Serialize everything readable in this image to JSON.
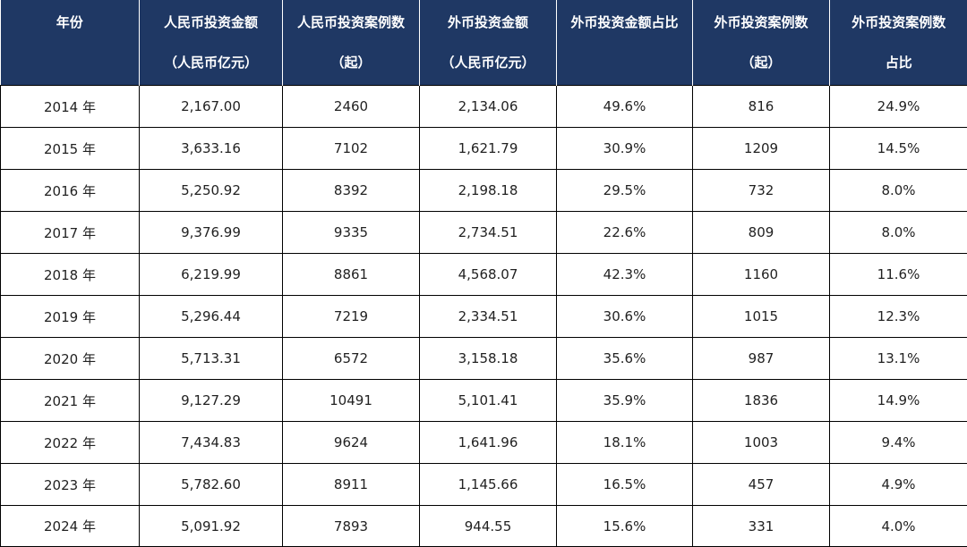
{
  "table": {
    "headers": [
      {
        "line1": "年份",
        "line2": ""
      },
      {
        "line1": "人民币投资金额",
        "line2": "（人民币亿元）"
      },
      {
        "line1": "人民币投资案例数",
        "line2": "（起）"
      },
      {
        "line1": "外币投资金额",
        "line2": "（人民币亿元）"
      },
      {
        "line1": "外币投资金额占比",
        "line2": ""
      },
      {
        "line1": "外币投资案例数",
        "line2": "（起）"
      },
      {
        "line1": "外币投资案例数",
        "line2": "占比"
      }
    ],
    "rows": [
      [
        "2014 年",
        "2,167.00",
        "2460",
        "2,134.06",
        "49.6%",
        "816",
        "24.9%"
      ],
      [
        "2015 年",
        "3,633.16",
        "7102",
        "1,621.79",
        "30.9%",
        "1209",
        "14.5%"
      ],
      [
        "2016 年",
        "5,250.92",
        "8392",
        "2,198.18",
        "29.5%",
        "732",
        "8.0%"
      ],
      [
        "2017 年",
        "9,376.99",
        "9335",
        "2,734.51",
        "22.6%",
        "809",
        "8.0%"
      ],
      [
        "2018 年",
        "6,219.99",
        "8861",
        "4,568.07",
        "42.3%",
        "1160",
        "11.6%"
      ],
      [
        "2019 年",
        "5,296.44",
        "7219",
        "2,334.51",
        "30.6%",
        "1015",
        "12.3%"
      ],
      [
        "2020 年",
        "5,713.31",
        "6572",
        "3,158.18",
        "35.6%",
        "987",
        "13.1%"
      ],
      [
        "2021 年",
        "9,127.29",
        "10491",
        "5,101.41",
        "35.9%",
        "1836",
        "14.9%"
      ],
      [
        "2022 年",
        "7,434.83",
        "9624",
        "1,641.96",
        "18.1%",
        "1003",
        "9.4%"
      ],
      [
        "2023 年",
        "5,782.60",
        "8911",
        "1,145.66",
        "16.5%",
        "457",
        "4.9%"
      ],
      [
        "2024 年",
        "5,091.92",
        "7893",
        "944.55",
        "15.6%",
        "331",
        "4.0%"
      ]
    ]
  },
  "colors": {
    "header_bg": "#1f3864",
    "header_text": "#ffffff",
    "grid": "#000000"
  }
}
